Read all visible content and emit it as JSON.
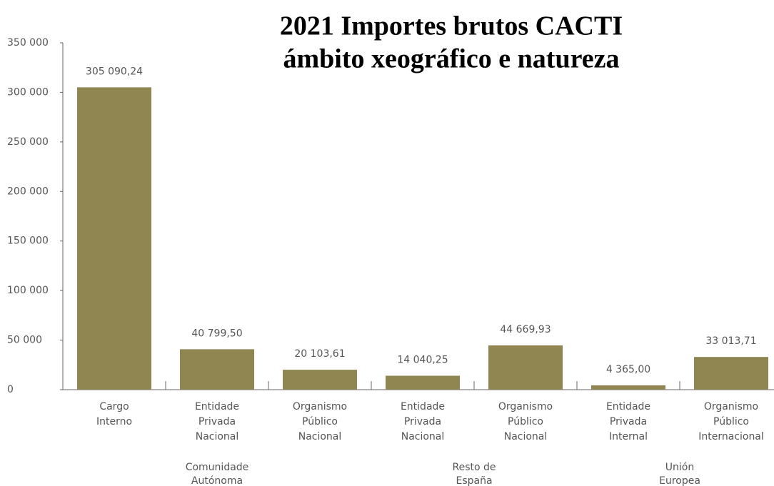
{
  "chart_data": {
    "type": "bar",
    "title": [
      "2021 Importes brutos CACTI",
      "ámbito xeográfico e natureza"
    ],
    "groups": [
      {
        "label": [
          "Comunidade",
          "Autónoma"
        ],
        "categories": [
          [
            "Cargo",
            "Interno"
          ],
          [
            "Entidade",
            "Privada",
            "Nacional"
          ],
          [
            "Organismo",
            "Público",
            "Nacional"
          ]
        ]
      },
      {
        "label": [
          "Resto de",
          "España"
        ],
        "categories": [
          [
            "Entidade",
            "Privada",
            "Nacional"
          ],
          [
            "Organismo",
            "Público",
            "Nacional"
          ]
        ]
      },
      {
        "label": [
          "Unión",
          "Europea"
        ],
        "categories": [
          [
            "Entidade",
            "Privada",
            "Internal"
          ],
          [
            "Organismo",
            "Público",
            "Internacional"
          ]
        ]
      }
    ],
    "values": [
      305090.24,
      40799.5,
      20103.61,
      14040.25,
      44669.93,
      4365.0,
      33013.71
    ],
    "value_labels": [
      "305 090,24",
      "40 799,50",
      "20 103,61",
      "14 040,25",
      "44 669,93",
      "4 365,00",
      "33 013,71"
    ],
    "color": "#8f8652",
    "ylim": [
      0,
      350000
    ],
    "yticks": [
      0,
      {
        "value": 50000,
        "label": "50 000"
      },
      {
        "value": 100000,
        "label": "100 000"
      },
      {
        "value": 150000,
        "label": "150 000"
      },
      {
        "value": 200000,
        "label": "200 000"
      },
      {
        "value": 250000,
        "label": "250 000"
      },
      {
        "value": 300000,
        "label": "300 000"
      },
      {
        "value": 350000,
        "label": "350 000"
      }
    ]
  }
}
